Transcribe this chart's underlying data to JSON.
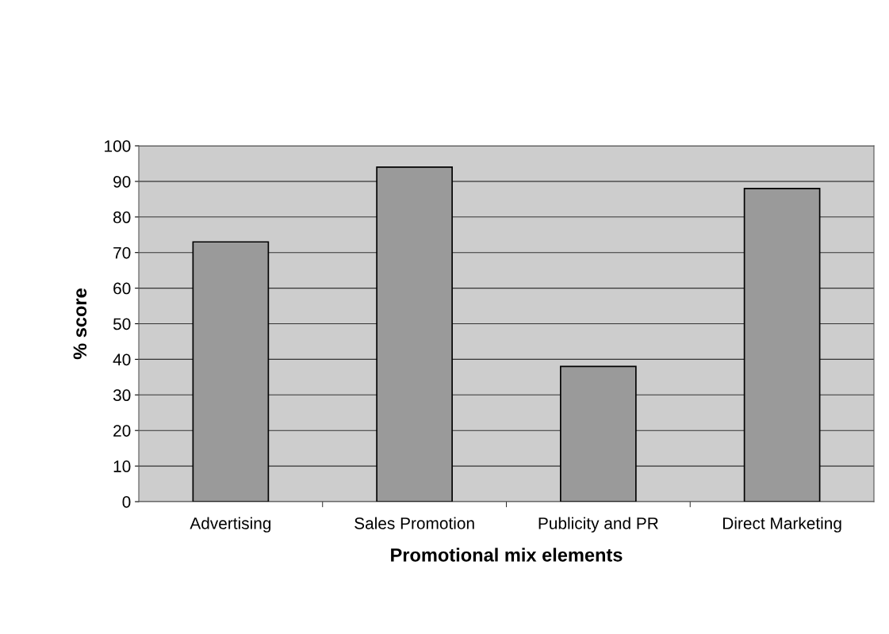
{
  "chart_data": {
    "type": "bar",
    "xlabel": "Promotional mix elements",
    "ylabel": "% score",
    "categories": [
      "Advertising",
      "Sales Promotion",
      "Publicity and PR",
      "Direct Marketing"
    ],
    "values": [
      73,
      94,
      38,
      88
    ],
    "color": "#9a9a9a",
    "ylim": [
      0,
      100
    ],
    "yticks": [
      0,
      10,
      20,
      30,
      40,
      50,
      60,
      70,
      80,
      90,
      100
    ],
    "grid": "y"
  }
}
